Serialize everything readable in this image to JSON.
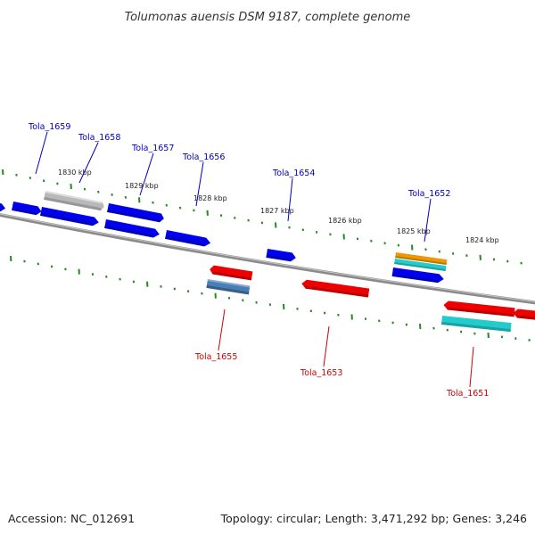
{
  "title": "Tolumonas auensis DSM 9187, complete genome",
  "accession_text": "Accession: NC_012691",
  "topology_text": "Topology: circular; Length: 3,471,292 bp; Genes: 3,246",
  "colors": {
    "backbone": "#8a8a8a",
    "tick": "#228b22",
    "label_forward": "#0000bb",
    "label_reverse": "#cc0000",
    "gene_blue": "#0000ee",
    "gene_red": "#ee0000",
    "gene_cyan": "#22cccc",
    "gene_orange": "#ee9900",
    "gene_gray": "#b8b8b8",
    "gene_steel": "#4a7fb5"
  },
  "kbp_labels": [
    "1830 kbp",
    "1829 kbp",
    "1828 kbp",
    "1827 kbp",
    "1826 kbp",
    "1825 kbp",
    "1824 kbp"
  ],
  "gene_labels_forward": [
    "Tola_1659",
    "Tola_1658",
    "Tola_1657",
    "Tola_1656",
    "Tola_1654",
    "Tola_1652"
  ],
  "gene_labels_reverse": [
    "Tola_1655",
    "Tola_1653",
    "Tola_1651"
  ]
}
